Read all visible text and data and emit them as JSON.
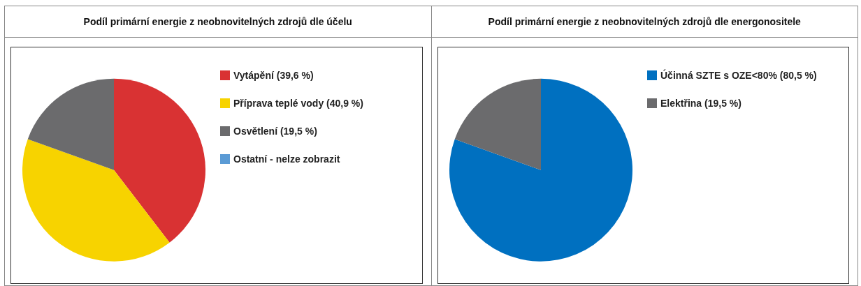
{
  "chart_data": [
    {
      "type": "pie",
      "title": "Podíl primární energie z neobnovitelných zdrojů dle účelu",
      "categories": [
        "Vytápění (39,6 %)",
        "Příprava teplé vody (40,9 %)",
        "Osvětlení (19,5 %)",
        "Ostatní - nelze zobrazit"
      ],
      "values": [
        39.6,
        40.9,
        19.5,
        0
      ],
      "colors": [
        "#d93233",
        "#f7d300",
        "#6b6b6d",
        "#5b9bd5"
      ],
      "legend": "right"
    },
    {
      "type": "pie",
      "title": "Podíl primární energie z neobnovitelných zdrojů dle energonositele",
      "categories": [
        "Účinná SZTE s OZE<80% (80,5 %)",
        "Elektřina (19,5 %)"
      ],
      "values": [
        80.5,
        19.5
      ],
      "colors": [
        "#0070c0",
        "#6b6b6d"
      ],
      "legend": "right"
    }
  ]
}
